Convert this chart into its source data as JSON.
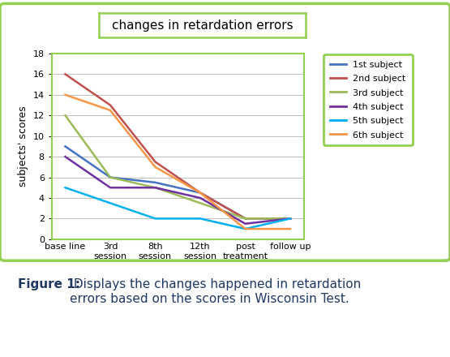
{
  "title": "changes in retardation errors",
  "ylabel": "subjects' scores",
  "xlabel_ticks": [
    "base line",
    "3rd\nsession",
    "8th\nsession",
    "12th\nsession",
    "post\ntreatment",
    "follow up"
  ],
  "ylim": [
    0,
    18
  ],
  "yticks": [
    0,
    2,
    4,
    6,
    8,
    10,
    12,
    14,
    16,
    18
  ],
  "series": [
    {
      "label": "1st subject",
      "color": "#4472C4",
      "data": [
        9,
        6,
        5.5,
        4.5,
        2,
        2
      ]
    },
    {
      "label": "2nd subject",
      "color": "#C0504D",
      "data": [
        16,
        13,
        7.5,
        4.5,
        2,
        2
      ]
    },
    {
      "label": "3rd subject",
      "color": "#9BBB59",
      "data": [
        12,
        6,
        5,
        3.5,
        2,
        2
      ]
    },
    {
      "label": "4th subject",
      "color": "#7030A0",
      "data": [
        8,
        5,
        5,
        4,
        1.5,
        2
      ]
    },
    {
      "label": "5th subject",
      "color": "#00B0F0",
      "data": [
        5,
        3.5,
        2,
        2,
        1,
        2
      ]
    },
    {
      "label": "6th subject",
      "color": "#F79646",
      "data": [
        14,
        12.5,
        7,
        4.5,
        1,
        1
      ]
    }
  ],
  "figure_caption_bold": "Figure 1:",
  "figure_caption_normal": " Displays the changes happened in retardation\nerrors based on the scores in Wisconsin Test.",
  "outer_border_color": "#92D050",
  "plot_border_color": "#92D050",
  "title_border_color": "#92D050",
  "legend_border_color": "#92D050",
  "background_color": "#FFFFFF",
  "grid_color": "#BFBFBF",
  "title_fontsize": 11,
  "axis_fontsize": 8,
  "ylabel_fontsize": 9,
  "legend_fontsize": 8,
  "caption_fontsize": 11
}
